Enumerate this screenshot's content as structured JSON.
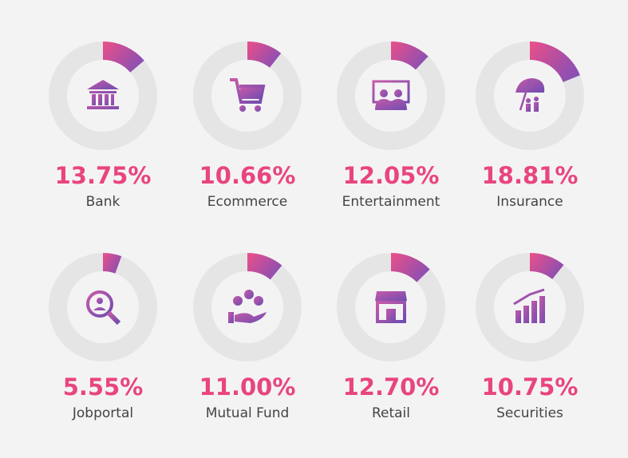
{
  "chart_data": {
    "type": "donut",
    "categories": [
      "Bank",
      "Ecommerce",
      "Entertainment",
      "Insurance",
      "Jobportal",
      "Mutual Fund",
      "Retail",
      "Securities"
    ],
    "values": [
      13.75,
      10.66,
      12.05,
      18.81,
      5.55,
      11.0,
      12.7,
      10.75
    ],
    "value_labels": [
      "13.75%",
      "10.66%",
      "12.05%",
      "18.81%",
      "5.55%",
      "11.00%",
      "12.70%",
      "10.75%"
    ],
    "track_color": "#e6e5e6",
    "colors": [
      "#ec4f88",
      "#8a4fb3"
    ]
  }
}
